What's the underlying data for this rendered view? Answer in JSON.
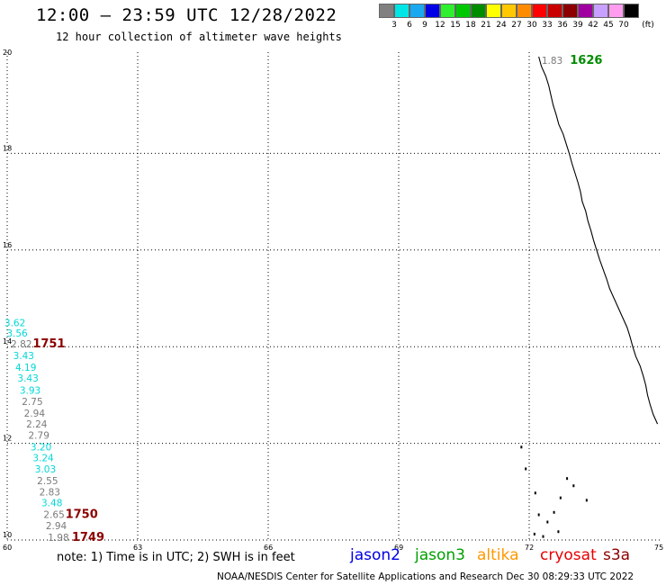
{
  "header": {
    "title": "12:00 — 23:59 UTC 12/28/2022",
    "subtitle": "12 hour collection of altimeter wave heights"
  },
  "legend": {
    "colors": [
      "#808080",
      "#00e5e5",
      "#1aa8f0",
      "#0000e6",
      "#2ef02e",
      "#00c800",
      "#008c00",
      "#ffff00",
      "#ffc800",
      "#ff8c00",
      "#ff0000",
      "#c80000",
      "#8c0000",
      "#a000a0",
      "#c8a0ff",
      "#ff9cf0",
      "#000000"
    ],
    "ticks": [
      "3",
      "6",
      "9",
      "12",
      "15",
      "18",
      "21",
      "24",
      "27",
      "30",
      "33",
      "36",
      "39",
      "42",
      "45",
      "70"
    ],
    "unit": "(ft)"
  },
  "map": {
    "lon_ticks": [
      "60",
      "63",
      "66",
      "69",
      "72",
      "75"
    ],
    "lat_ticks": [
      "10",
      "12",
      "14",
      "16",
      "18",
      "20"
    ],
    "lon_range": [
      60,
      75
    ],
    "lat_range": [
      10,
      20
    ],
    "grid": "dotted"
  },
  "observations": [
    {
      "v": "3.62",
      "color": "#00d8d8",
      "lon": 60.35,
      "lat": 14.5
    },
    {
      "v": "3.56",
      "color": "#00d8d8",
      "lon": 60.4,
      "lat": 14.28
    },
    {
      "v": "2.82",
      "color": "#7a7a7a",
      "lon": 60.5,
      "lat": 14.06
    },
    {
      "v": "3.43",
      "color": "#00d8d8",
      "lon": 60.55,
      "lat": 13.82
    },
    {
      "v": "4.19",
      "color": "#00d8d8",
      "lon": 60.6,
      "lat": 13.58
    },
    {
      "v": "3.43",
      "color": "#00d8d8",
      "lon": 60.65,
      "lat": 13.35
    },
    {
      "v": "3.93",
      "color": "#00d8d8",
      "lon": 60.7,
      "lat": 13.1
    },
    {
      "v": "2.75",
      "color": "#7a7a7a",
      "lon": 60.75,
      "lat": 12.87
    },
    {
      "v": "2.94",
      "color": "#7a7a7a",
      "lon": 60.8,
      "lat": 12.63
    },
    {
      "v": "2.24",
      "color": "#7a7a7a",
      "lon": 60.85,
      "lat": 12.4
    },
    {
      "v": "2.79",
      "color": "#7a7a7a",
      "lon": 60.9,
      "lat": 12.17
    },
    {
      "v": "3.20",
      "color": "#00d8d8",
      "lon": 60.95,
      "lat": 11.93
    },
    {
      "v": "3.24",
      "color": "#00d8d8",
      "lon": 61.0,
      "lat": 11.7
    },
    {
      "v": "3.03",
      "color": "#00d8d8",
      "lon": 61.05,
      "lat": 11.47
    },
    {
      "v": "2.55",
      "color": "#7a7a7a",
      "lon": 61.1,
      "lat": 11.23
    },
    {
      "v": "2.83",
      "color": "#7a7a7a",
      "lon": 61.15,
      "lat": 11.0
    },
    {
      "v": "3.48",
      "color": "#00d8d8",
      "lon": 61.2,
      "lat": 10.77
    },
    {
      "v": "2.65",
      "color": "#7a7a7a",
      "lon": 61.25,
      "lat": 10.53
    },
    {
      "v": "2.94",
      "color": "#7a7a7a",
      "lon": 61.3,
      "lat": 10.3
    },
    {
      "v": "1.98",
      "color": "#7a7a7a",
      "lon": 61.35,
      "lat": 10.06
    },
    {
      "v": "1.83",
      "color": "#7a7a7a",
      "lon": 72.7,
      "lat": 19.93
    }
  ],
  "time_labels": [
    {
      "t": "1751",
      "color": "#8c0000",
      "lon": 61.0,
      "lat": 14.06
    },
    {
      "t": "1750",
      "color": "#8c0000",
      "lon": 61.75,
      "lat": 10.53
    },
    {
      "t": "1749",
      "color": "#8c0000",
      "lon": 61.9,
      "lat": 10.06
    },
    {
      "t": "1626",
      "color": "#008c00",
      "lon": 73.35,
      "lat": 19.93
    }
  ],
  "footer": {
    "note": "note: 1) Time is in UTC; 2) SWH is in feet",
    "satellites": [
      {
        "name": "jason2",
        "color": "#0000e6"
      },
      {
        "name": "jason3",
        "color": "#00a000"
      },
      {
        "name": "altika",
        "color": "#ff9900"
      },
      {
        "name": "cryosat",
        "color": "#e60000"
      },
      {
        "name": "s3a",
        "color": "#8c0000"
      }
    ],
    "credit": "NOAA/NESDIS Center for Satellite Applications and Research    Dec 30 08:29:33 UTC 2022"
  }
}
